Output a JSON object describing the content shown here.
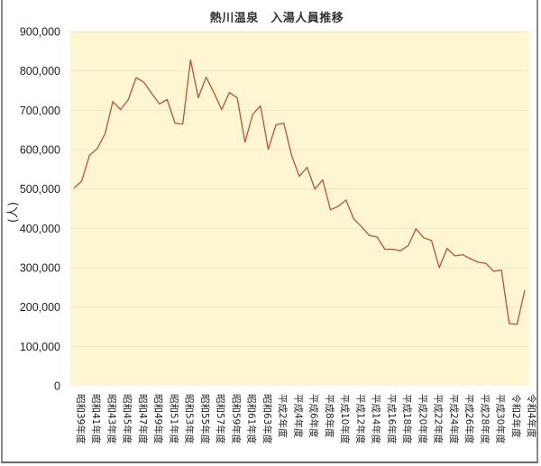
{
  "chart_data": {
    "type": "line",
    "title": "熱川温泉　入湯人員推移",
    "xlabel": "",
    "ylabel": "(人)",
    "ylim": [
      0,
      900000
    ],
    "yticks": [
      0,
      100000,
      200000,
      300000,
      400000,
      500000,
      600000,
      700000,
      800000,
      900000
    ],
    "ytick_labels": [
      "0",
      "100,000",
      "200,000",
      "300,000",
      "400,000",
      "500,000",
      "600,000",
      "700,000",
      "800,000",
      "900,000"
    ],
    "grid": true,
    "legend": null,
    "background": "#fdf6d0",
    "line_color": "#b5553c",
    "x": [
      "昭和39年度",
      "昭和40年度",
      "昭和41年度",
      "昭和42年度",
      "昭和43年度",
      "昭和44年度",
      "昭和45年度",
      "昭和46年度",
      "昭和47年度",
      "昭和48年度",
      "昭和49年度",
      "昭和50年度",
      "昭和51年度",
      "昭和52年度",
      "昭和53年度",
      "昭和54年度",
      "昭和55年度",
      "昭和56年度",
      "昭和57年度",
      "昭和58年度",
      "昭和59年度",
      "昭和60年度",
      "昭和61年度",
      "昭和62年度",
      "昭和63年度",
      "平成1年度",
      "平成2年度",
      "平成3年度",
      "平成4年度",
      "平成5年度",
      "平成6年度",
      "平成7年度",
      "平成8年度",
      "平成9年度",
      "平成10年度",
      "平成11年度",
      "平成12年度",
      "平成13年度",
      "平成14年度",
      "平成15年度",
      "平成16年度",
      "平成17年度",
      "平成18年度",
      "平成19年度",
      "平成20年度",
      "平成21年度",
      "平成22年度",
      "平成23年度",
      "平成24年度",
      "平成25年度",
      "平成26年度",
      "平成27年度",
      "平成28年度",
      "平成29年度",
      "平成30年度",
      "令和1年度",
      "令和2年度",
      "令和3年度",
      "令和4年度"
    ],
    "xtick_labels": [
      "昭和39年度",
      "昭和41年度",
      "昭和43年度",
      "昭和45年度",
      "昭和47年度",
      "昭和49年度",
      "昭和51年度",
      "昭和53年度",
      "昭和55年度",
      "昭和57年度",
      "昭和59年度",
      "昭和61年度",
      "昭和63年度",
      "平成2年度",
      "平成4年度",
      "平成6年度",
      "平成8年度",
      "平成10年度",
      "平成12年度",
      "平成14年度",
      "平成16年度",
      "平成18年度",
      "平成20年度",
      "平成22年度",
      "平成24年度",
      "平成26年度",
      "平成28年度",
      "平成30年度",
      "令和2年度",
      "令和4年度"
    ],
    "series": [
      {
        "name": "入湯人員",
        "values": [
          502000,
          520000,
          585000,
          603000,
          640000,
          722000,
          702000,
          727000,
          783000,
          771000,
          743000,
          716000,
          727000,
          667000,
          665000,
          828000,
          732000,
          784000,
          745000,
          702000,
          745000,
          732000,
          619000,
          690000,
          711000,
          601000,
          663000,
          667000,
          585000,
          532000,
          555000,
          500000,
          523000,
          447000,
          456000,
          472000,
          424000,
          404000,
          382000,
          378000,
          347000,
          347000,
          343000,
          356000,
          399000,
          376000,
          369000,
          300000,
          349000,
          330000,
          333000,
          323000,
          314000,
          311000,
          291000,
          294000,
          158000,
          156000,
          243000
        ]
      }
    ]
  }
}
